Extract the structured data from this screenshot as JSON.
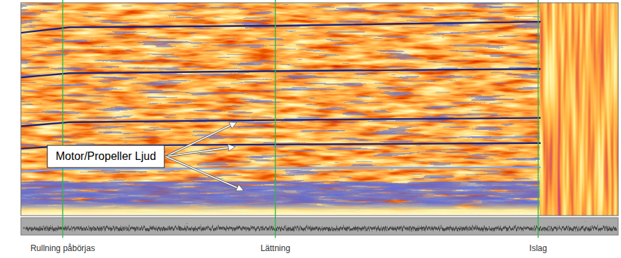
{
  "chart_data": {
    "type": "spectrogram",
    "xlim": [
      0,
      100
    ],
    "ylim": [
      0,
      100
    ],
    "tick_labels": false,
    "grid": false,
    "series": [
      {
        "color": "#1a237e",
        "x": [
          0,
          8.1,
          43.0,
          86.9
        ],
        "values": [
          85.9,
          88.5,
          89.2,
          91.1
        ]
      },
      {
        "color": "#1a237e",
        "x": [
          0,
          8.1,
          43.0,
          86.9
        ],
        "values": [
          64.9,
          66.9,
          67.9,
          68.9
        ]
      },
      {
        "color": "#1a237e",
        "x": [
          0,
          8.1,
          43.0,
          86.9
        ],
        "values": [
          42.0,
          43.9,
          44.9,
          45.9
        ]
      },
      {
        "color": "#1a237e",
        "x": [
          0,
          8.1,
          43.0,
          86.9
        ],
        "values": [
          31.5,
          32.8,
          33.4,
          34.1
        ]
      },
      {
        "color": "#7fa6f4",
        "x": [
          0,
          8.1,
          43.0,
          86.9
        ],
        "values": [
          20.7,
          22.0,
          22.3,
          22.6
        ]
      }
    ],
    "events": [
      {
        "label": "Rullning påbörjas",
        "x": 7.0
      },
      {
        "label": "Lättning",
        "x": 42.6
      },
      {
        "label": "Islag",
        "x": 86.6
      }
    ],
    "annotation": {
      "text": "Motor/Propeller Ljud"
    }
  }
}
